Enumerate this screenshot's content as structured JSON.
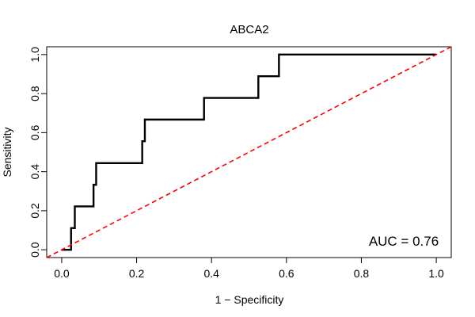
{
  "chart_data": {
    "type": "line",
    "title": "ABCA2",
    "xlabel": "1 − Specificity",
    "ylabel": "Sensitivity",
    "xlim": [
      -0.04,
      1.04
    ],
    "ylim": [
      -0.04,
      1.04
    ],
    "x_ticks": [
      0.0,
      0.2,
      0.4,
      0.6,
      0.8,
      1.0
    ],
    "x_tick_labels": [
      "0.0",
      "0.2",
      "0.4",
      "0.6",
      "0.8",
      "1.0"
    ],
    "y_ticks": [
      0.0,
      0.2,
      0.4,
      0.6,
      0.8,
      1.0
    ],
    "y_tick_labels": [
      "0.0",
      "0.2",
      "0.4",
      "0.6",
      "0.8",
      "1.0"
    ],
    "annotation": "AUC = 0.76",
    "grid": false,
    "series": [
      {
        "style": "solid",
        "color": "#000000",
        "points": [
          [
            0.0,
            0.0
          ],
          [
            0.025,
            0.0
          ],
          [
            0.025,
            0.111
          ],
          [
            0.035,
            0.111
          ],
          [
            0.035,
            0.222
          ],
          [
            0.085,
            0.222
          ],
          [
            0.085,
            0.333
          ],
          [
            0.092,
            0.333
          ],
          [
            0.092,
            0.444
          ],
          [
            0.215,
            0.444
          ],
          [
            0.215,
            0.556
          ],
          [
            0.222,
            0.556
          ],
          [
            0.222,
            0.667
          ],
          [
            0.38,
            0.667
          ],
          [
            0.38,
            0.778
          ],
          [
            0.525,
            0.778
          ],
          [
            0.525,
            0.889
          ],
          [
            0.58,
            0.889
          ],
          [
            0.58,
            1.0
          ],
          [
            1.0,
            1.0
          ]
        ]
      },
      {
        "style": "dashed",
        "color": "#ff0000",
        "points": [
          [
            -0.04,
            -0.04
          ],
          [
            1.04,
            1.04
          ]
        ]
      }
    ]
  }
}
